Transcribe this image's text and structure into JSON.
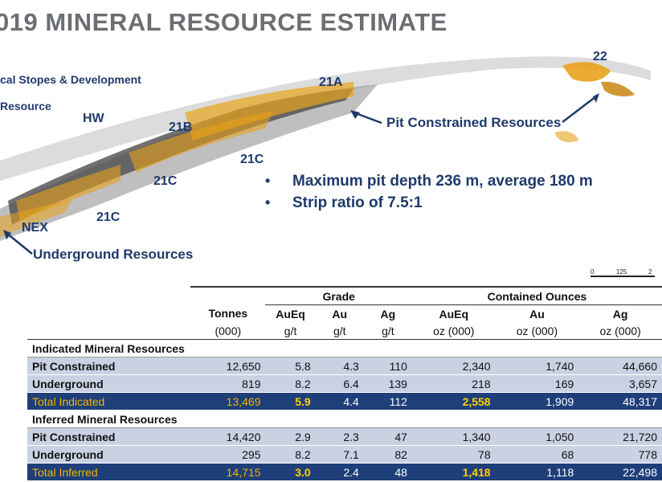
{
  "title": "019 MINERAL RESOURCE ESTIMATE",
  "labels": {
    "stopes": "cal Stopes & Development",
    "resource": "Resource",
    "hw": "HW",
    "z21a": "21A",
    "z21b": "21B",
    "z21c_a": "21C",
    "z21c_b": "21C",
    "z21c_c": "21C",
    "nex": "NEX",
    "z22": "22",
    "pit": "Pit Constrained Resources",
    "underground": "Underground Resources"
  },
  "bullets": [
    "Maximum pit depth 236 m, average 180 m",
    "Strip ratio of 7.5:1"
  ],
  "scale": {
    "t0": "0",
    "t1": "125",
    "t2": "2"
  },
  "table": {
    "groups": {
      "grade": "Grade",
      "contained": "Contained Ounces"
    },
    "head_top": [
      "Tonnes",
      "AuEq",
      "Au",
      "Ag",
      "AuEq",
      "Au",
      "Ag"
    ],
    "head_bot": [
      "(000)",
      "g/t",
      "g/t",
      "g/t",
      "oz (000)",
      "oz (000)",
      "oz (000)"
    ],
    "sections": [
      {
        "title": "Indicated Mineral Resources",
        "rows": [
          [
            "Pit Constrained",
            "12,650",
            "5.8",
            "4.3",
            "110",
            "2,340",
            "1,740",
            "44,660"
          ],
          [
            "Underground",
            "819",
            "8.2",
            "6.4",
            "139",
            "218",
            "169",
            "3,657"
          ]
        ],
        "total": [
          "Total Indicated",
          "13,469",
          "5.9",
          "4.4",
          "112",
          "2,558",
          "1,909",
          "48,317"
        ]
      },
      {
        "title": "Inferred Mineral Resources",
        "rows": [
          [
            "Pit Constrained",
            "14,420",
            "2.9",
            "2.3",
            "47",
            "1,340",
            "1,050",
            "21,720"
          ],
          [
            "Underground",
            "295",
            "8.2",
            "7.1",
            "82",
            "78",
            "68",
            "778"
          ]
        ],
        "total": [
          "Total Inferred",
          "14,715",
          "3.0",
          "2.4",
          "48",
          "1,418",
          "1,118",
          "22,498"
        ]
      }
    ]
  },
  "colors": {
    "navy": "#1f3a6b",
    "ore": "#e8a21a",
    "band": "#c9d1e3",
    "total": "#1f3f7a"
  }
}
